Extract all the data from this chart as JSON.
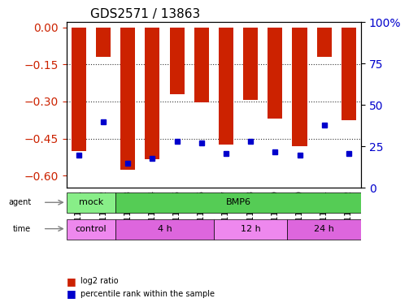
{
  "title": "GDS2571 / 13863",
  "samples": [
    "GSM110201",
    "GSM110202",
    "GSM110203",
    "GSM110204",
    "GSM110205",
    "GSM110206",
    "GSM110207",
    "GSM110208",
    "GSM110209",
    "GSM110210",
    "GSM110211",
    "GSM110212"
  ],
  "log2_ratio": [
    -0.5,
    -0.12,
    -0.575,
    -0.535,
    -0.27,
    -0.305,
    -0.475,
    -0.295,
    -0.37,
    -0.48,
    -0.12,
    -0.375
  ],
  "percentile": [
    20,
    40,
    15,
    18,
    28,
    27,
    21,
    28,
    22,
    20,
    38,
    21
  ],
  "ylim_left": [
    -0.65,
    0.02
  ],
  "ylim_right": [
    0,
    100
  ],
  "yticks_left": [
    0,
    -0.15,
    -0.3,
    -0.45,
    -0.6
  ],
  "yticks_right": [
    0,
    25,
    50,
    75,
    100
  ],
  "bar_color": "#cc2200",
  "dot_color": "#0000cc",
  "agent_labels": [
    {
      "label": "mock",
      "start": 0,
      "end": 2,
      "color": "#88ee88"
    },
    {
      "label": "BMP6",
      "start": 2,
      "end": 12,
      "color": "#55cc55"
    }
  ],
  "time_labels": [
    {
      "label": "control",
      "start": 0,
      "end": 2,
      "color": "#ee88ee"
    },
    {
      "label": "4 h",
      "start": 2,
      "end": 6,
      "color": "#dd66dd"
    },
    {
      "label": "12 h",
      "start": 6,
      "end": 9,
      "color": "#ee88ee"
    },
    {
      "label": "24 h",
      "start": 9,
      "end": 12,
      "color": "#dd66dd"
    }
  ],
  "legend_items": [
    {
      "label": "log2 ratio",
      "color": "#cc2200"
    },
    {
      "label": "percentile rank within the sample",
      "color": "#0000cc"
    }
  ],
  "grid_color": "#333333",
  "bg_color": "#ffffff",
  "tick_color_left": "#cc2200",
  "tick_color_right": "#0000cc",
  "bar_width": 0.6
}
